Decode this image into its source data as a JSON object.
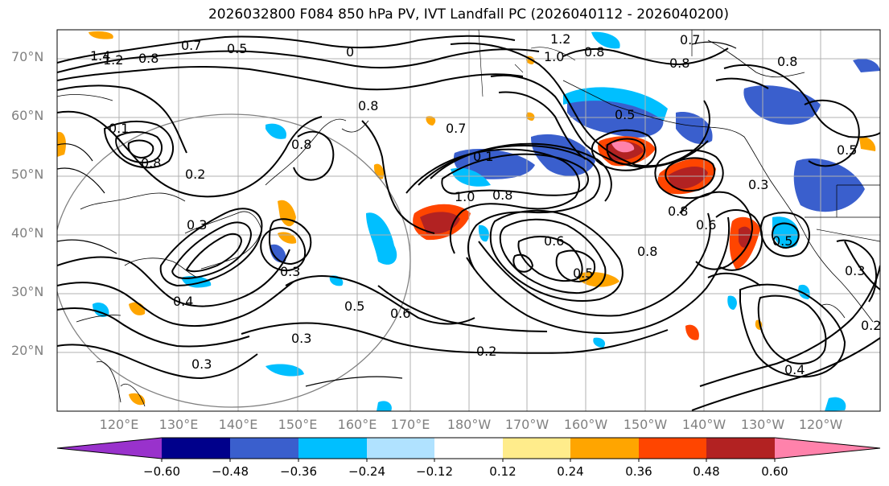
{
  "title": "2026032800 F084 850 hPa PV, IVT Landfall PC (2026040112 - 2026040200)",
  "lat_labels": [
    "70°N",
    "60°N",
    "50°N",
    "40°N",
    "30°N",
    "20°N"
  ],
  "lon_labels": [
    "120°E",
    "130°E",
    "140°E",
    "150°E",
    "160°E",
    "170°E",
    "180°W",
    "170°W",
    "160°W",
    "150°W",
    "140°W",
    "130°W",
    "120°W"
  ],
  "contour_labels": [
    "1.4",
    "1.2",
    "0.8",
    "0.7",
    "0.5",
    "0",
    "1.2",
    "1.0",
    "0.8",
    "0.7",
    "0.8",
    "0.8",
    "0.8",
    "0.5",
    "0.7",
    "0.1",
    "0.8",
    "0.2",
    "0.3",
    "0.8",
    "0.1",
    "1.0",
    "0.8",
    "0.6",
    "0.8",
    "0.8",
    "0.6",
    "0.3",
    "0.3",
    "0.5",
    "0.6",
    "0.5",
    "0.3",
    "0.2",
    "0.4",
    "0.3",
    "0.5",
    "0.4",
    "0.2",
    "0.3",
    "0.5"
  ],
  "colorbar": {
    "ticks": [
      "−0.60",
      "−0.48",
      "−0.36",
      "−0.24",
      "−0.12",
      "0.12",
      "0.24",
      "0.36",
      "0.48",
      "0.60"
    ],
    "colors": [
      "#9932cc",
      "#00008b",
      "#3a5fcd",
      "#00bfff",
      "#b0e2ff",
      "#ffffff",
      "#ffec8b",
      "#ffa500",
      "#ff4500",
      "#b22222",
      "#ff82ab"
    ]
  }
}
